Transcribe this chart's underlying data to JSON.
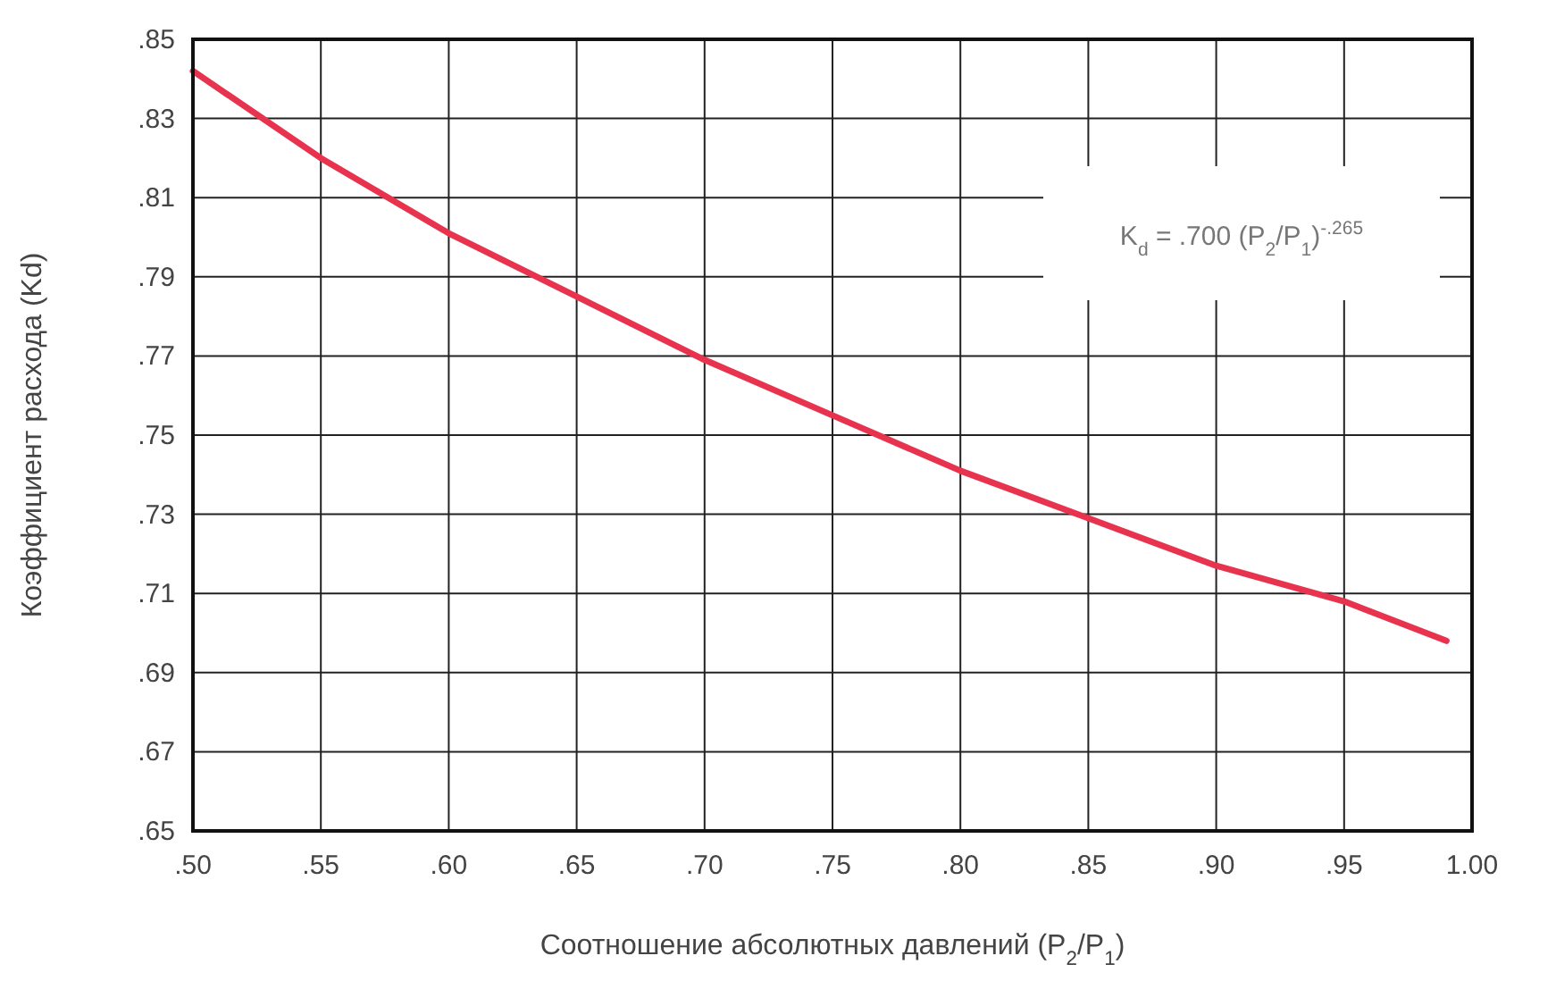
{
  "chart_data": {
    "type": "line",
    "xlabel": "Соотношение абсолютных давлений (P$_{2}$/P$_{1}$)",
    "ylabel": "Коэффициент расхода (Kd)",
    "x": [
      0.5,
      0.55,
      0.6,
      0.65,
      0.7,
      0.75,
      0.8,
      0.85,
      0.9,
      0.95,
      0.99
    ],
    "series": [
      {
        "color": "#e8334f",
        "values": [
          0.842,
          0.82,
          0.801,
          0.785,
          0.769,
          0.755,
          0.741,
          0.729,
          0.717,
          0.708,
          0.698
        ]
      }
    ],
    "xlim": [
      0.5,
      1.0
    ],
    "xticks": [
      {
        "value": 0.5,
        "label": ".50"
      },
      {
        "value": 0.55,
        "label": ".55"
      },
      {
        "value": 0.6,
        "label": ".60"
      },
      {
        "value": 0.65,
        "label": ".65"
      },
      {
        "value": 0.7,
        "label": ".70"
      },
      {
        "value": 0.75,
        "label": ".75"
      },
      {
        "value": 0.8,
        "label": ".80"
      },
      {
        "value": 0.85,
        "label": ".85"
      },
      {
        "value": 0.9,
        "label": ".90"
      },
      {
        "value": 0.95,
        "label": ".95"
      },
      {
        "value": 1.0,
        "label": "1.00"
      }
    ],
    "ylim": [
      0.65,
      0.85
    ],
    "yticks": [
      {
        "value": 0.65,
        "label": ".65"
      },
      {
        "value": 0.67,
        "label": ".67"
      },
      {
        "value": 0.69,
        "label": ".69"
      },
      {
        "value": 0.71,
        "label": ".71"
      },
      {
        "value": 0.73,
        "label": ".73"
      },
      {
        "value": 0.75,
        "label": ".75"
      },
      {
        "value": 0.77,
        "label": ".77"
      },
      {
        "value": 0.79,
        "label": ".79"
      },
      {
        "value": 0.81,
        "label": ".81"
      },
      {
        "value": 0.83,
        "label": ".83"
      },
      {
        "value": 0.85,
        "label": ".85"
      }
    ],
    "grid": true,
    "line_style": "solid",
    "annotations": [
      "K$_{d}$ = .700 (P$_{2}$/P$_{1}$)$^{-.265}$"
    ]
  }
}
